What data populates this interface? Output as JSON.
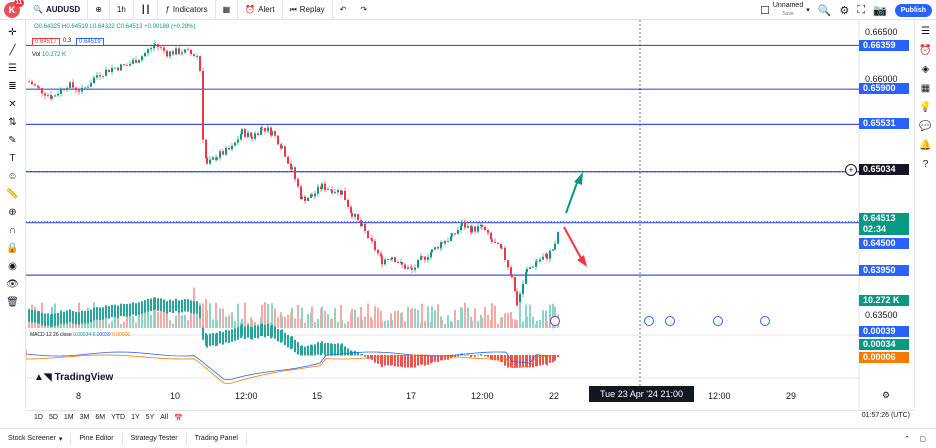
{
  "topbar": {
    "avatar_letter": "K",
    "avatar_badge": "11",
    "symbol": "AUDUSD",
    "interval": "1h",
    "indicators_label": "Indicators",
    "alert_label": "Alert",
    "replay_label": "Replay",
    "layout_name": "Unnamed",
    "layout_sub": "Save",
    "publish_label": "Publish"
  },
  "legend": {
    "ohlc": "O0.64325 H0.64519 L0.64322 C0.64513 +0.00188 (+0.29%)",
    "sell": "0.64517",
    "spread": "0.3",
    "buy": "0.64519",
    "volume_label": "Vol",
    "volume_value": "10.272 K",
    "macd_label": "MACD 12 26 close",
    "macd_v1": "0.00034",
    "macd_v2": "0.00039",
    "macd_v3": "0.00006"
  },
  "price_axis": {
    "plain_ticks": [
      "0.66500",
      "0.66000",
      "0.63500"
    ],
    "tags": [
      {
        "text": "0.66359",
        "color": "#2962ff",
        "price": 0.66359
      },
      {
        "text": "0.65900",
        "color": "#2962ff",
        "price": 0.659
      },
      {
        "text": "0.65531",
        "color": "#2962ff",
        "price": 0.65531
      },
      {
        "text": "0.65034",
        "color": "#131722",
        "price": 0.65034
      },
      {
        "text": "0.64513",
        "color": "#089981",
        "price": 0.64513
      },
      {
        "text": "02:34",
        "color": "#089981",
        "price": null
      },
      {
        "text": "0.64500",
        "color": "#2962ff",
        "price": 0.645
      },
      {
        "text": "0.63950",
        "color": "#2962ff",
        "price": 0.6395
      },
      {
        "text": "10.272 K",
        "color": "#089981",
        "price": null
      },
      {
        "text": "0.00039",
        "color": "#2962ff",
        "price": null
      },
      {
        "text": "0.00034",
        "color": "#089981",
        "price": null
      },
      {
        "text": "0.00006",
        "color": "#f57c00",
        "price": null
      }
    ]
  },
  "time_axis": {
    "labels": [
      "8",
      "10",
      "12:00",
      "15",
      "17",
      "12:00",
      "22",
      "12:00",
      "29"
    ],
    "crosshair_time": "Tue 23 Apr '24  21:00"
  },
  "branding": "TradingView",
  "ranges": [
    "1D",
    "5D",
    "1M",
    "3M",
    "6M",
    "YTD",
    "1Y",
    "5Y",
    "All"
  ],
  "utc_time": "01:57:26 (UTC)",
  "panels": [
    "Stock Screener",
    "Pine Editor",
    "Strategy Tester",
    "Trading Panel"
  ],
  "chart_data": {
    "type": "candlestick",
    "horizontal_levels": [
      0.66359,
      0.659,
      0.65531,
      0.65034,
      0.645,
      0.6395
    ],
    "last_price": 0.64513,
    "ylim": [
      0.633,
      0.668
    ]
  }
}
